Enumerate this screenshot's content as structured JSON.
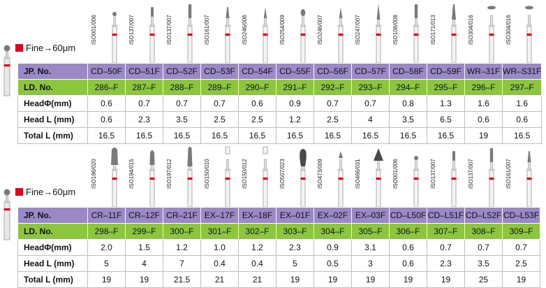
{
  "colors": {
    "jp_row": "#9b88c6",
    "ld_row": "#8cc63f",
    "fine_mark": "#e3001b"
  },
  "sections": [
    {
      "fine_label": "Fine→60μm",
      "row_headers": {
        "jp": "JP. No.",
        "ld": "LD. No.",
        "head_d": "HeadΦ(mm)",
        "head_l": "Head L (mm)",
        "total_l": "Total L (mm)"
      },
      "items": [
        {
          "iso": "ISO001/006",
          "jp": "CD–50F",
          "ld": "286–F",
          "head_d": "0.6",
          "head_l": "0.6",
          "total_l": "16.5",
          "shape": "ball"
        },
        {
          "iso": "ISO137/007",
          "jp": "CD–51F",
          "ld": "287–F",
          "head_d": "0.7",
          "head_l": "2.3",
          "total_l": "16.5",
          "shape": "cyl"
        },
        {
          "iso": "ISO137/007",
          "jp": "CD–52F",
          "ld": "288–F",
          "head_d": "0.7",
          "head_l": "3.5",
          "total_l": "16.5",
          "shape": "cyl-long"
        },
        {
          "iso": "ISO161/007",
          "jp": "CD–53F",
          "ld": "289–F",
          "head_d": "0.7",
          "head_l": "2.5",
          "total_l": "16.5",
          "shape": "taper"
        },
        {
          "iso": "ISO246/006",
          "jp": "CD–54F",
          "ld": "290–F",
          "head_d": "0.6",
          "head_l": "2.5",
          "total_l": "16.5",
          "shape": "needle"
        },
        {
          "iso": "ISO254/009",
          "jp": "CD–55F",
          "ld": "291–F",
          "head_d": "0.9",
          "head_l": "1.2",
          "total_l": "16.5",
          "shape": "flame-small"
        },
        {
          "iso": "ISO246/007",
          "jp": "CD–56F",
          "ld": "292–F",
          "head_d": "0.7",
          "head_l": "2.5",
          "total_l": "16.5",
          "shape": "needle"
        },
        {
          "iso": "ISO247/007",
          "jp": "CD–57F",
          "ld": "293–F",
          "head_d": "0.7",
          "head_l": "4",
          "total_l": "16.5",
          "shape": "needle-long"
        },
        {
          "iso": "ISO108/008",
          "jp": "CD–58F",
          "ld": "294–F",
          "head_d": "0.8",
          "head_l": "3.5",
          "total_l": "16.5",
          "shape": "cyl-long"
        },
        {
          "iso": "ISO171/013",
          "jp": "CD–59F",
          "ld": "295–F",
          "head_d": "1.3",
          "head_l": "6.5",
          "total_l": "16.5",
          "shape": "taper-long"
        },
        {
          "iso": "ISO304/016",
          "jp": "WR–31F",
          "ld": "296–F",
          "head_d": "1.6",
          "head_l": "0.6",
          "total_l": "19",
          "shape": "wheel"
        },
        {
          "iso": "ISO304/016",
          "jp": "WR–S31F",
          "ld": "297–F",
          "head_d": "1.6",
          "head_l": "0.6",
          "total_l": "16.5",
          "shape": "wheel"
        }
      ]
    },
    {
      "fine_label": "Fine→60μm",
      "row_headers": {
        "jp": "JP. No.",
        "ld": "LD. No.",
        "head_d": "HeadΦ(mm)",
        "head_l": "Head L (mm)",
        "total_l": "Total L (mm)"
      },
      "items": [
        {
          "iso": "ISO196/020",
          "jp": "CR–11F",
          "ld": "298–F",
          "head_d": "2.0",
          "head_l": "5",
          "total_l": "19",
          "shape": "bullet"
        },
        {
          "iso": "ISO194/015",
          "jp": "CR–12F",
          "ld": "299–F",
          "head_d": "1.5",
          "head_l": "4",
          "total_l": "19",
          "shape": "bullet-thin"
        },
        {
          "iso": "ISO197/012",
          "jp": "CR–21F",
          "ld": "300–F",
          "head_d": "1.2",
          "head_l": "7",
          "total_l": "21.5",
          "shape": "bullet-long"
        },
        {
          "iso": "ISO150/010",
          "jp": "EX–17F",
          "ld": "301–F",
          "head_d": "1.0",
          "head_l": "0.4",
          "total_l": "21",
          "shape": "plain"
        },
        {
          "iso": "ISO150/012",
          "jp": "EX–18F",
          "ld": "302–F",
          "head_d": "1.2",
          "head_l": "0.4",
          "total_l": "21",
          "shape": "plain"
        },
        {
          "iso": "ISO507/023",
          "jp": "EX–01F",
          "ld": "303–F",
          "head_d": "2.3",
          "head_l": "5",
          "total_l": "19",
          "shape": "pear"
        },
        {
          "iso": "ISO473/009",
          "jp": "EX–02F",
          "ld": "304–F",
          "head_d": "0.9",
          "head_l": "0.5",
          "total_l": "19",
          "shape": "bud"
        },
        {
          "iso": "ISO466/031",
          "jp": "EX–03F",
          "ld": "305–F",
          "head_d": "3.1",
          "head_l": "3",
          "total_l": "19",
          "shape": "cone"
        },
        {
          "iso": "ISO001/006",
          "jp": "CD–L50F",
          "ld": "306–F",
          "head_d": "0.6",
          "head_l": "0.6",
          "total_l": "19",
          "shape": "ball"
        },
        {
          "iso": "ISO137/007",
          "jp": "CD–L51F",
          "ld": "307–F",
          "head_d": "0.7",
          "head_l": "2.3",
          "total_l": "19",
          "shape": "cyl"
        },
        {
          "iso": "ISO137/007",
          "jp": "CD–L52F",
          "ld": "308–F",
          "head_d": "0.7",
          "head_l": "3.5",
          "total_l": "25",
          "shape": "cyl-long"
        },
        {
          "iso": "ISO161/007",
          "jp": "CD–L53F",
          "ld": "309–F",
          "head_d": "0.7",
          "head_l": "2.5",
          "total_l": "19",
          "shape": "taper"
        }
      ]
    }
  ]
}
